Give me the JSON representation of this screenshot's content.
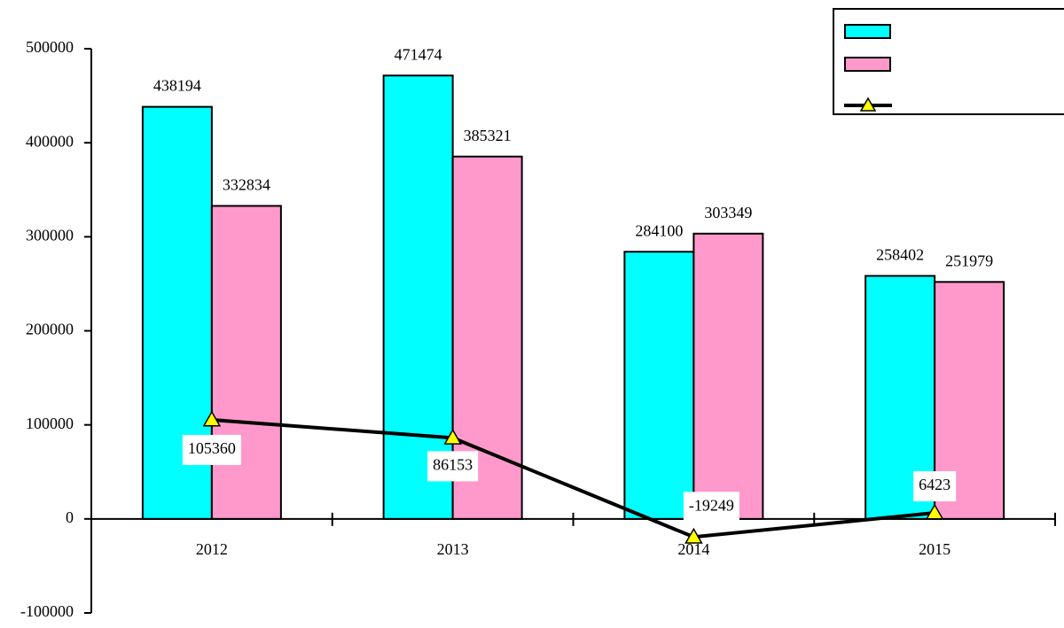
{
  "chart_data": {
    "type": "bar",
    "categories": [
      "2012",
      "2013",
      "2014",
      "2015"
    ],
    "series": [
      {
        "color": "#00ffff",
        "values": [
          438194,
          471474,
          284100,
          258402
        ]
      },
      {
        "color": "#ff99cc",
        "values": [
          332834,
          385321,
          303349,
          251979
        ]
      },
      {
        "type": "line",
        "color": "#000000",
        "marker_color": "#ffff00",
        "values": [
          105360,
          86153,
          -19249,
          6423
        ]
      }
    ],
    "ylim": [
      -100000,
      500000
    ],
    "yticks": [
      -100000,
      0,
      100000,
      200000,
      300000,
      400000,
      500000
    ],
    "grid": false,
    "legend": "upper right"
  }
}
